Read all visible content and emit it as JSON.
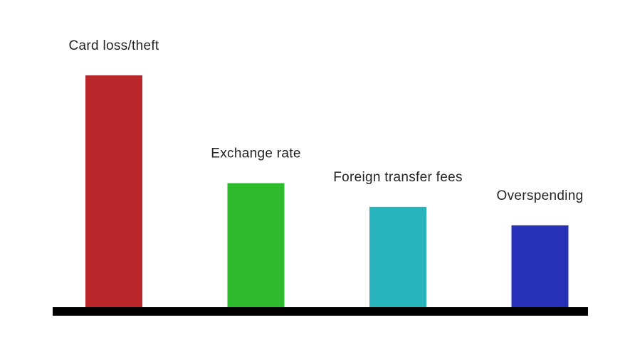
{
  "chart_data": {
    "type": "bar",
    "categories": [
      "Card loss/theft",
      "Exchange rate",
      "Foreign transfer fees",
      "Overspending"
    ],
    "values": [
      100,
      53.5,
      43.3,
      35.3
    ],
    "colors": [
      "#b9272a",
      "#2dba2d",
      "#28b4bd",
      "#2630b8"
    ],
    "axis_color": "#000000",
    "ylim": [
      0,
      100
    ],
    "grid": false,
    "legend": "none",
    "title": "",
    "xlabel": "",
    "ylabel": ""
  }
}
